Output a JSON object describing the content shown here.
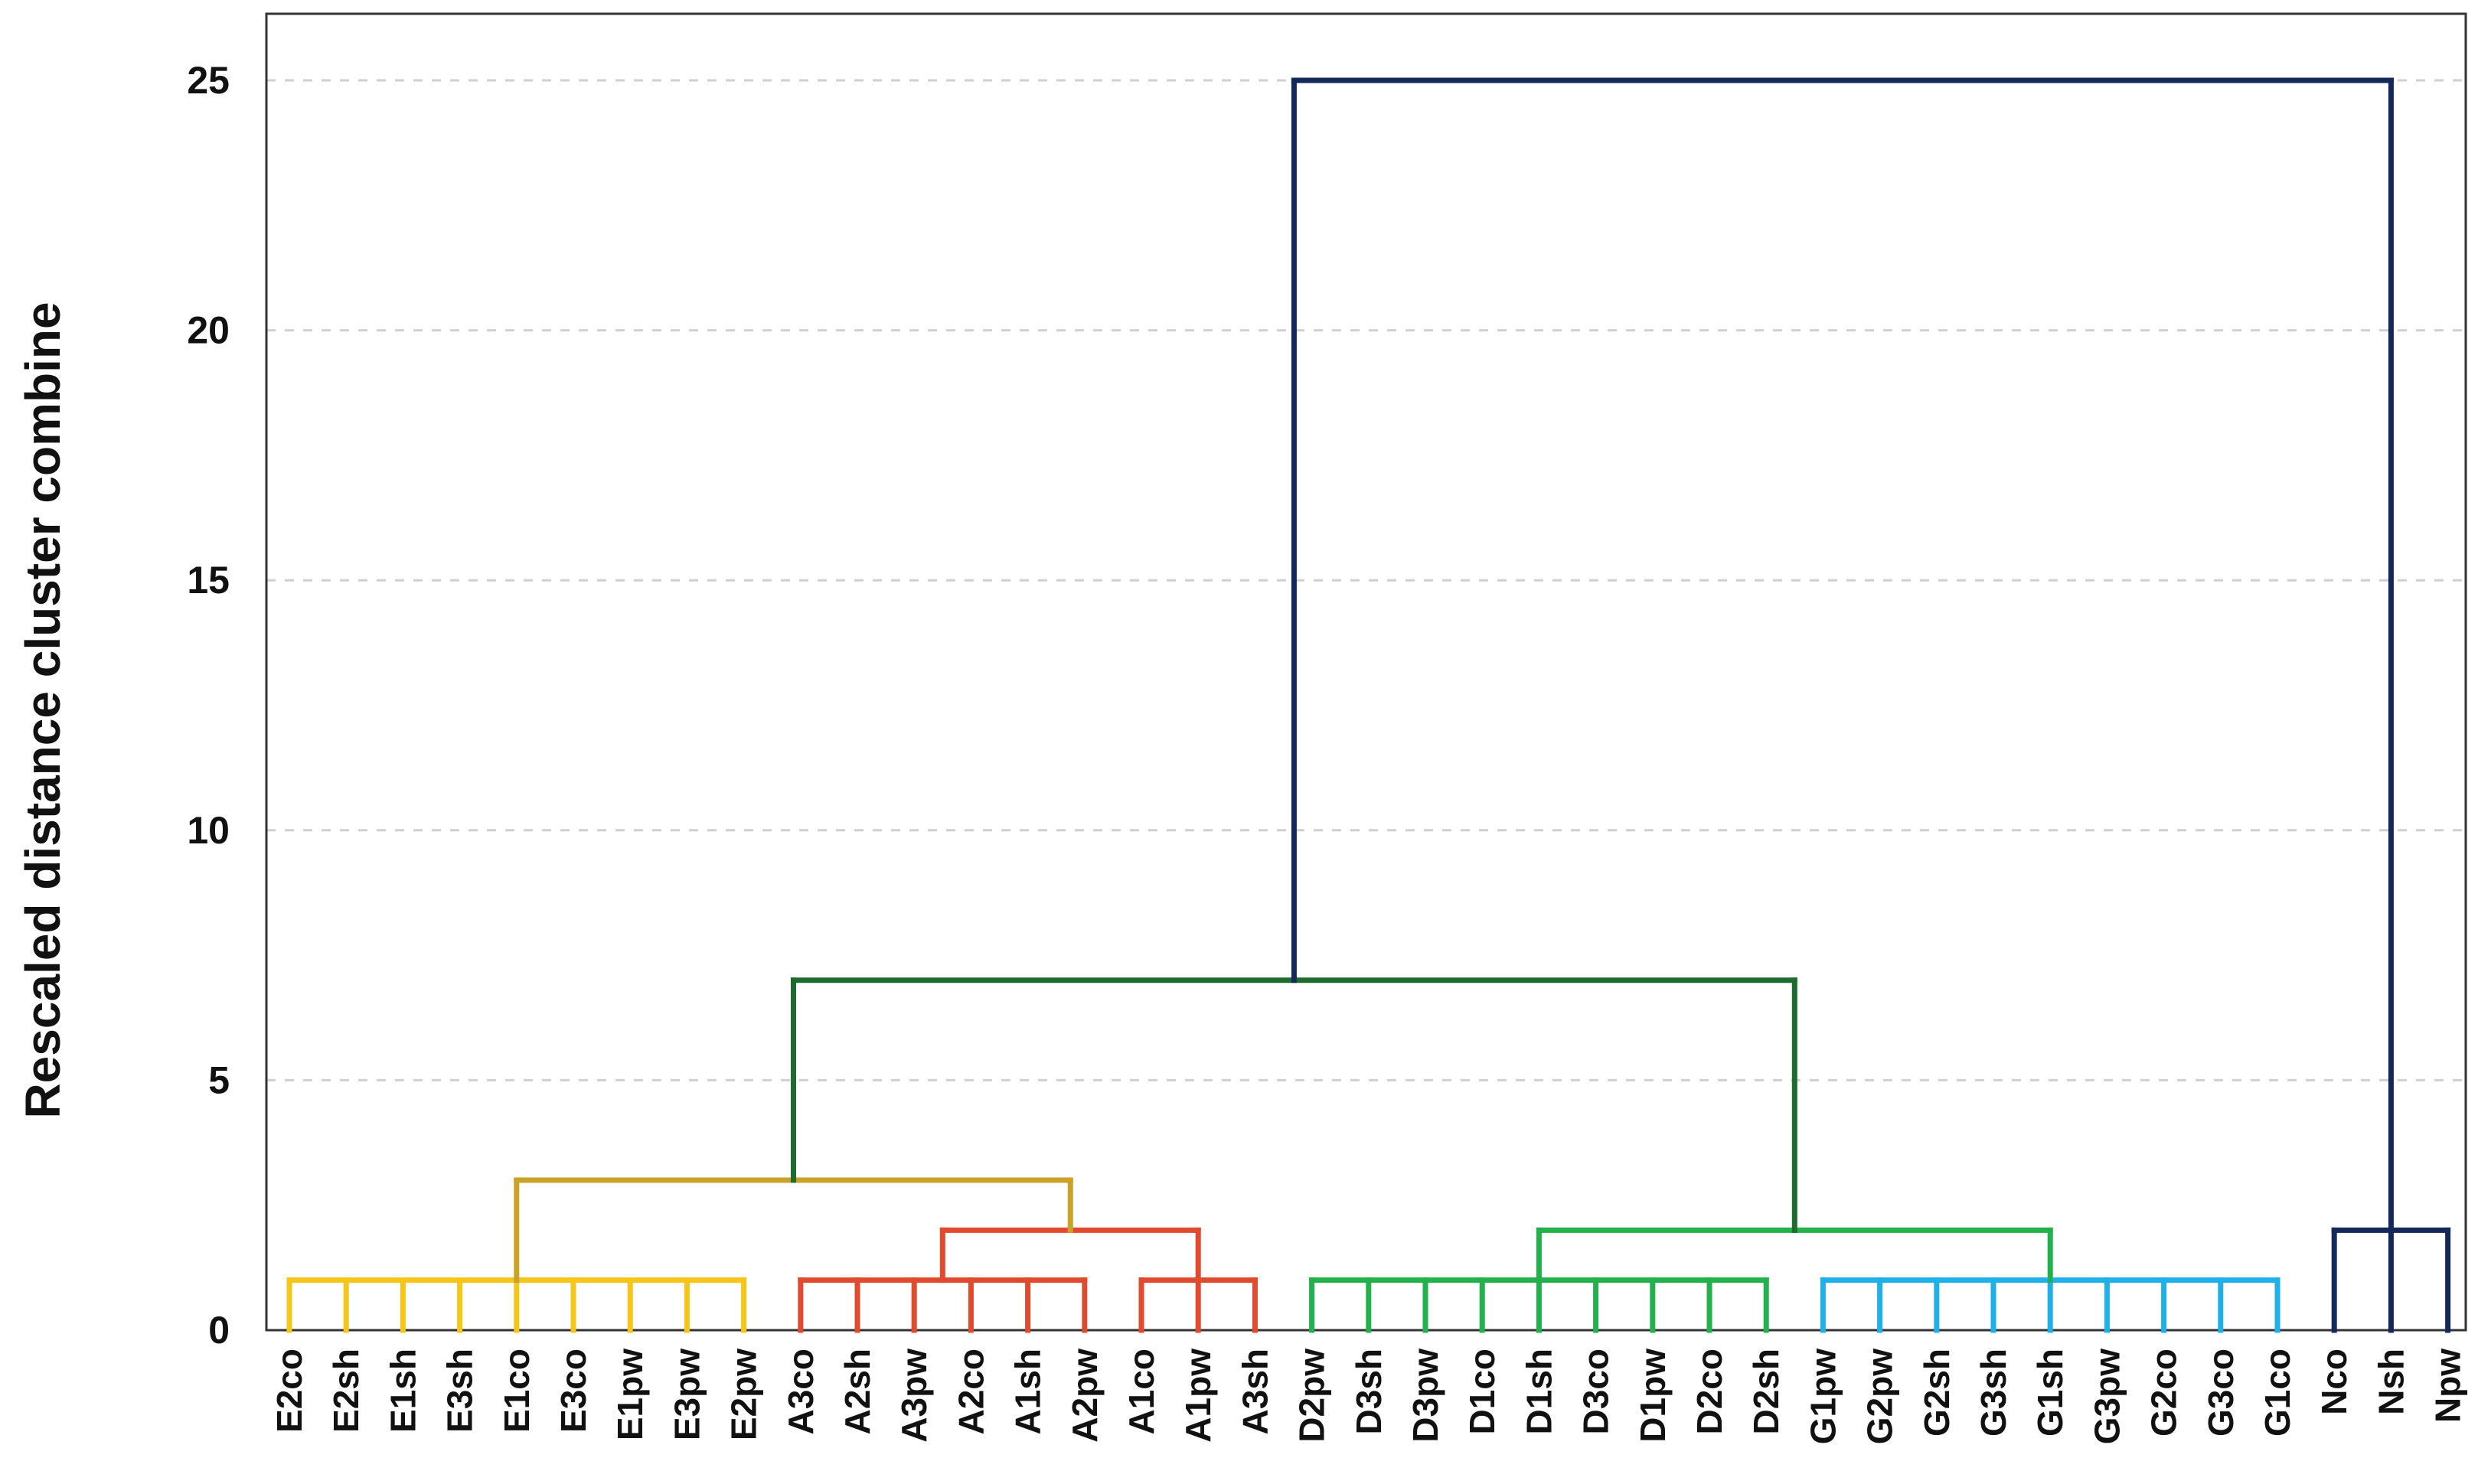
{
  "chart_data": {
    "type": "dendrogram",
    "ylabel": "Rescaled distance cluster combine",
    "ylim": [
      0,
      26.2
    ],
    "yticks": [
      0,
      5,
      10,
      15,
      20,
      25
    ],
    "grid": true,
    "leaves": [
      "E2co",
      "E2sh",
      "E1sh",
      "E3sh",
      "E1co",
      "E3co",
      "E1pw",
      "E3pw",
      "E2pw",
      "A3co",
      "A2sh",
      "A3pw",
      "A2co",
      "A1sh",
      "A2pw",
      "A1co",
      "A1pw",
      "A3sh",
      "D2pw",
      "D3sh",
      "D3pw",
      "D1co",
      "D1sh",
      "D3co",
      "D1pw",
      "D2co",
      "D2sh",
      "G1pw",
      "G2pw",
      "G2sh",
      "G3sh",
      "G1sh",
      "G3pw",
      "G2co",
      "G3co",
      "G1co",
      "Nco",
      "Nsh",
      "Npw"
    ],
    "colors": {
      "E": "#f5c518",
      "A": "#e04a2f",
      "D": "#22b14c",
      "G": "#1fb0ea",
      "N": "#14285a",
      "EA": "#c9a227",
      "DG": "#1e6b2e",
      "root": "#14285a"
    },
    "merges": [
      {
        "leaves": [
          0,
          8
        ],
        "height": 1.0,
        "color": "E"
      },
      {
        "leaves": [
          9,
          14
        ],
        "height": 1.0,
        "color": "A"
      },
      {
        "leaves": [
          15,
          17
        ],
        "height": 1.0,
        "color": "A"
      },
      {
        "join": [
          11.5,
          16
        ],
        "height": 2.0,
        "color": "A"
      },
      {
        "join": [
          4,
          13.75
        ],
        "height": 3.0,
        "color": "EA"
      },
      {
        "leaves": [
          18,
          26
        ],
        "height": 1.0,
        "color": "D"
      },
      {
        "leaves": [
          27,
          35
        ],
        "height": 1.0,
        "color": "G"
      },
      {
        "join": [
          22,
          31
        ],
        "height": 2.0,
        "color": "D"
      },
      {
        "join": [
          8.875,
          26.5
        ],
        "height": 7.0,
        "color": "DG"
      },
      {
        "leaves": [
          36,
          38
        ],
        "height": 2.0,
        "color": "N"
      },
      {
        "join": [
          17.6875,
          37
        ],
        "height": 25.0,
        "color": "root"
      }
    ]
  }
}
